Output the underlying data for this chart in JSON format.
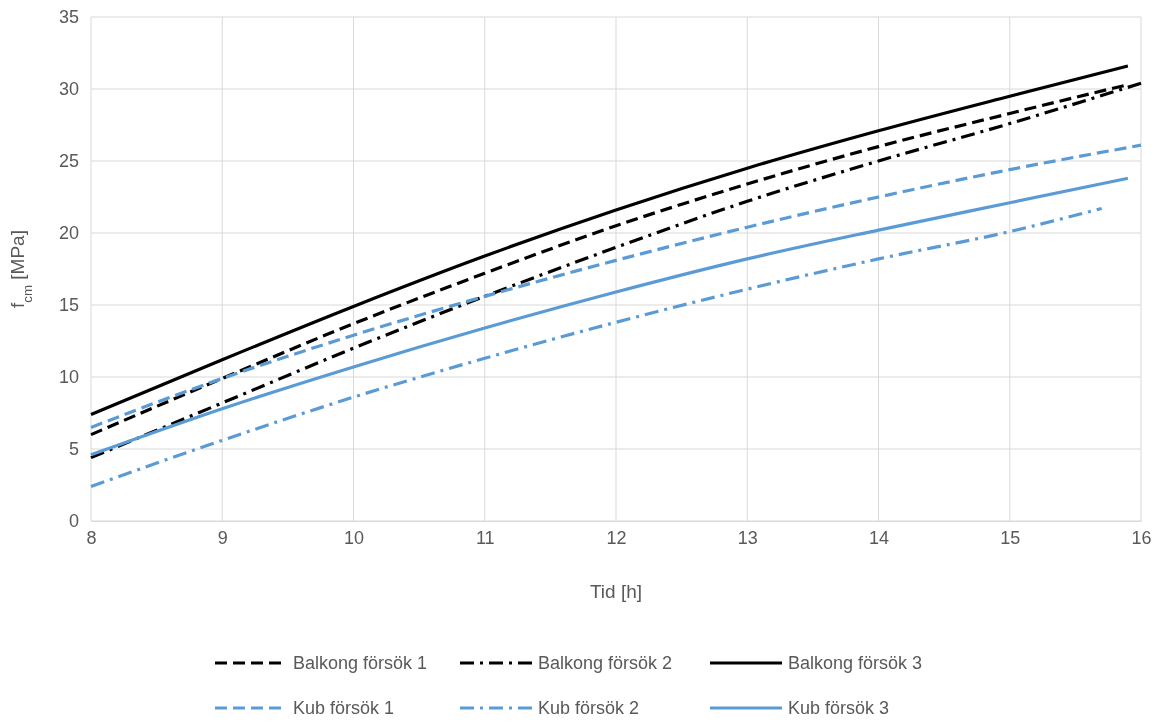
{
  "chart_data": {
    "type": "line",
    "xlabel": "Tid [h]",
    "ylabel": "f$_{cm}$ [MPa]",
    "xlim": [
      8,
      16
    ],
    "xticks": [
      8,
      9,
      10,
      11,
      12,
      13,
      14,
      15,
      16
    ],
    "ylim": [
      0,
      35
    ],
    "yticks": [
      0,
      5,
      10,
      15,
      20,
      25,
      30,
      35
    ],
    "grid": true,
    "legend": "bottom",
    "marker": "none",
    "series": [
      {
        "name": "Balkong försök 1",
        "color": "#000000",
        "line_style": "dashed",
        "x": [
          8,
          9,
          10,
          11,
          12,
          13,
          14,
          15,
          15.9
        ],
        "values": [
          6.0,
          9.9,
          13.7,
          17.2,
          20.5,
          23.4,
          26.0,
          28.3,
          30.3
        ]
      },
      {
        "name": "Balkong försök 2",
        "color": "#000000",
        "line_style": "dashdot",
        "x": [
          8,
          9,
          10,
          11,
          12,
          13,
          14,
          15,
          16
        ],
        "values": [
          4.4,
          8.2,
          12.0,
          15.6,
          19.0,
          22.2,
          25.0,
          27.6,
          30.4
        ]
      },
      {
        "name": "Balkong försök 3",
        "color": "#000000",
        "line_style": "solid",
        "x": [
          8,
          9,
          10,
          11,
          12,
          13,
          14,
          15,
          15.9
        ],
        "values": [
          7.4,
          11.2,
          14.9,
          18.4,
          21.6,
          24.5,
          27.1,
          29.5,
          31.6
        ]
      },
      {
        "name": "Kub försök 1",
        "color": "#5b9bd5",
        "line_style": "dashed",
        "x": [
          8,
          9,
          10,
          11,
          12,
          13,
          14,
          15,
          16
        ],
        "values": [
          6.5,
          9.9,
          12.9,
          15.6,
          18.1,
          20.4,
          22.5,
          24.4,
          26.1
        ]
      },
      {
        "name": "Kub försök 2",
        "color": "#5b9bd5",
        "line_style": "dashdot",
        "x": [
          8,
          9,
          10,
          11,
          12,
          13,
          14,
          15,
          15.7
        ],
        "values": [
          2.4,
          5.6,
          8.6,
          11.3,
          13.8,
          16.1,
          18.2,
          20.1,
          21.7
        ]
      },
      {
        "name": "Kub försök 3",
        "color": "#5b9bd5",
        "line_style": "solid",
        "x": [
          8,
          9,
          10,
          11,
          12,
          13,
          14,
          15,
          15.9
        ],
        "values": [
          4.6,
          7.8,
          10.7,
          13.4,
          15.9,
          18.2,
          20.2,
          22.1,
          23.8
        ]
      }
    ]
  }
}
